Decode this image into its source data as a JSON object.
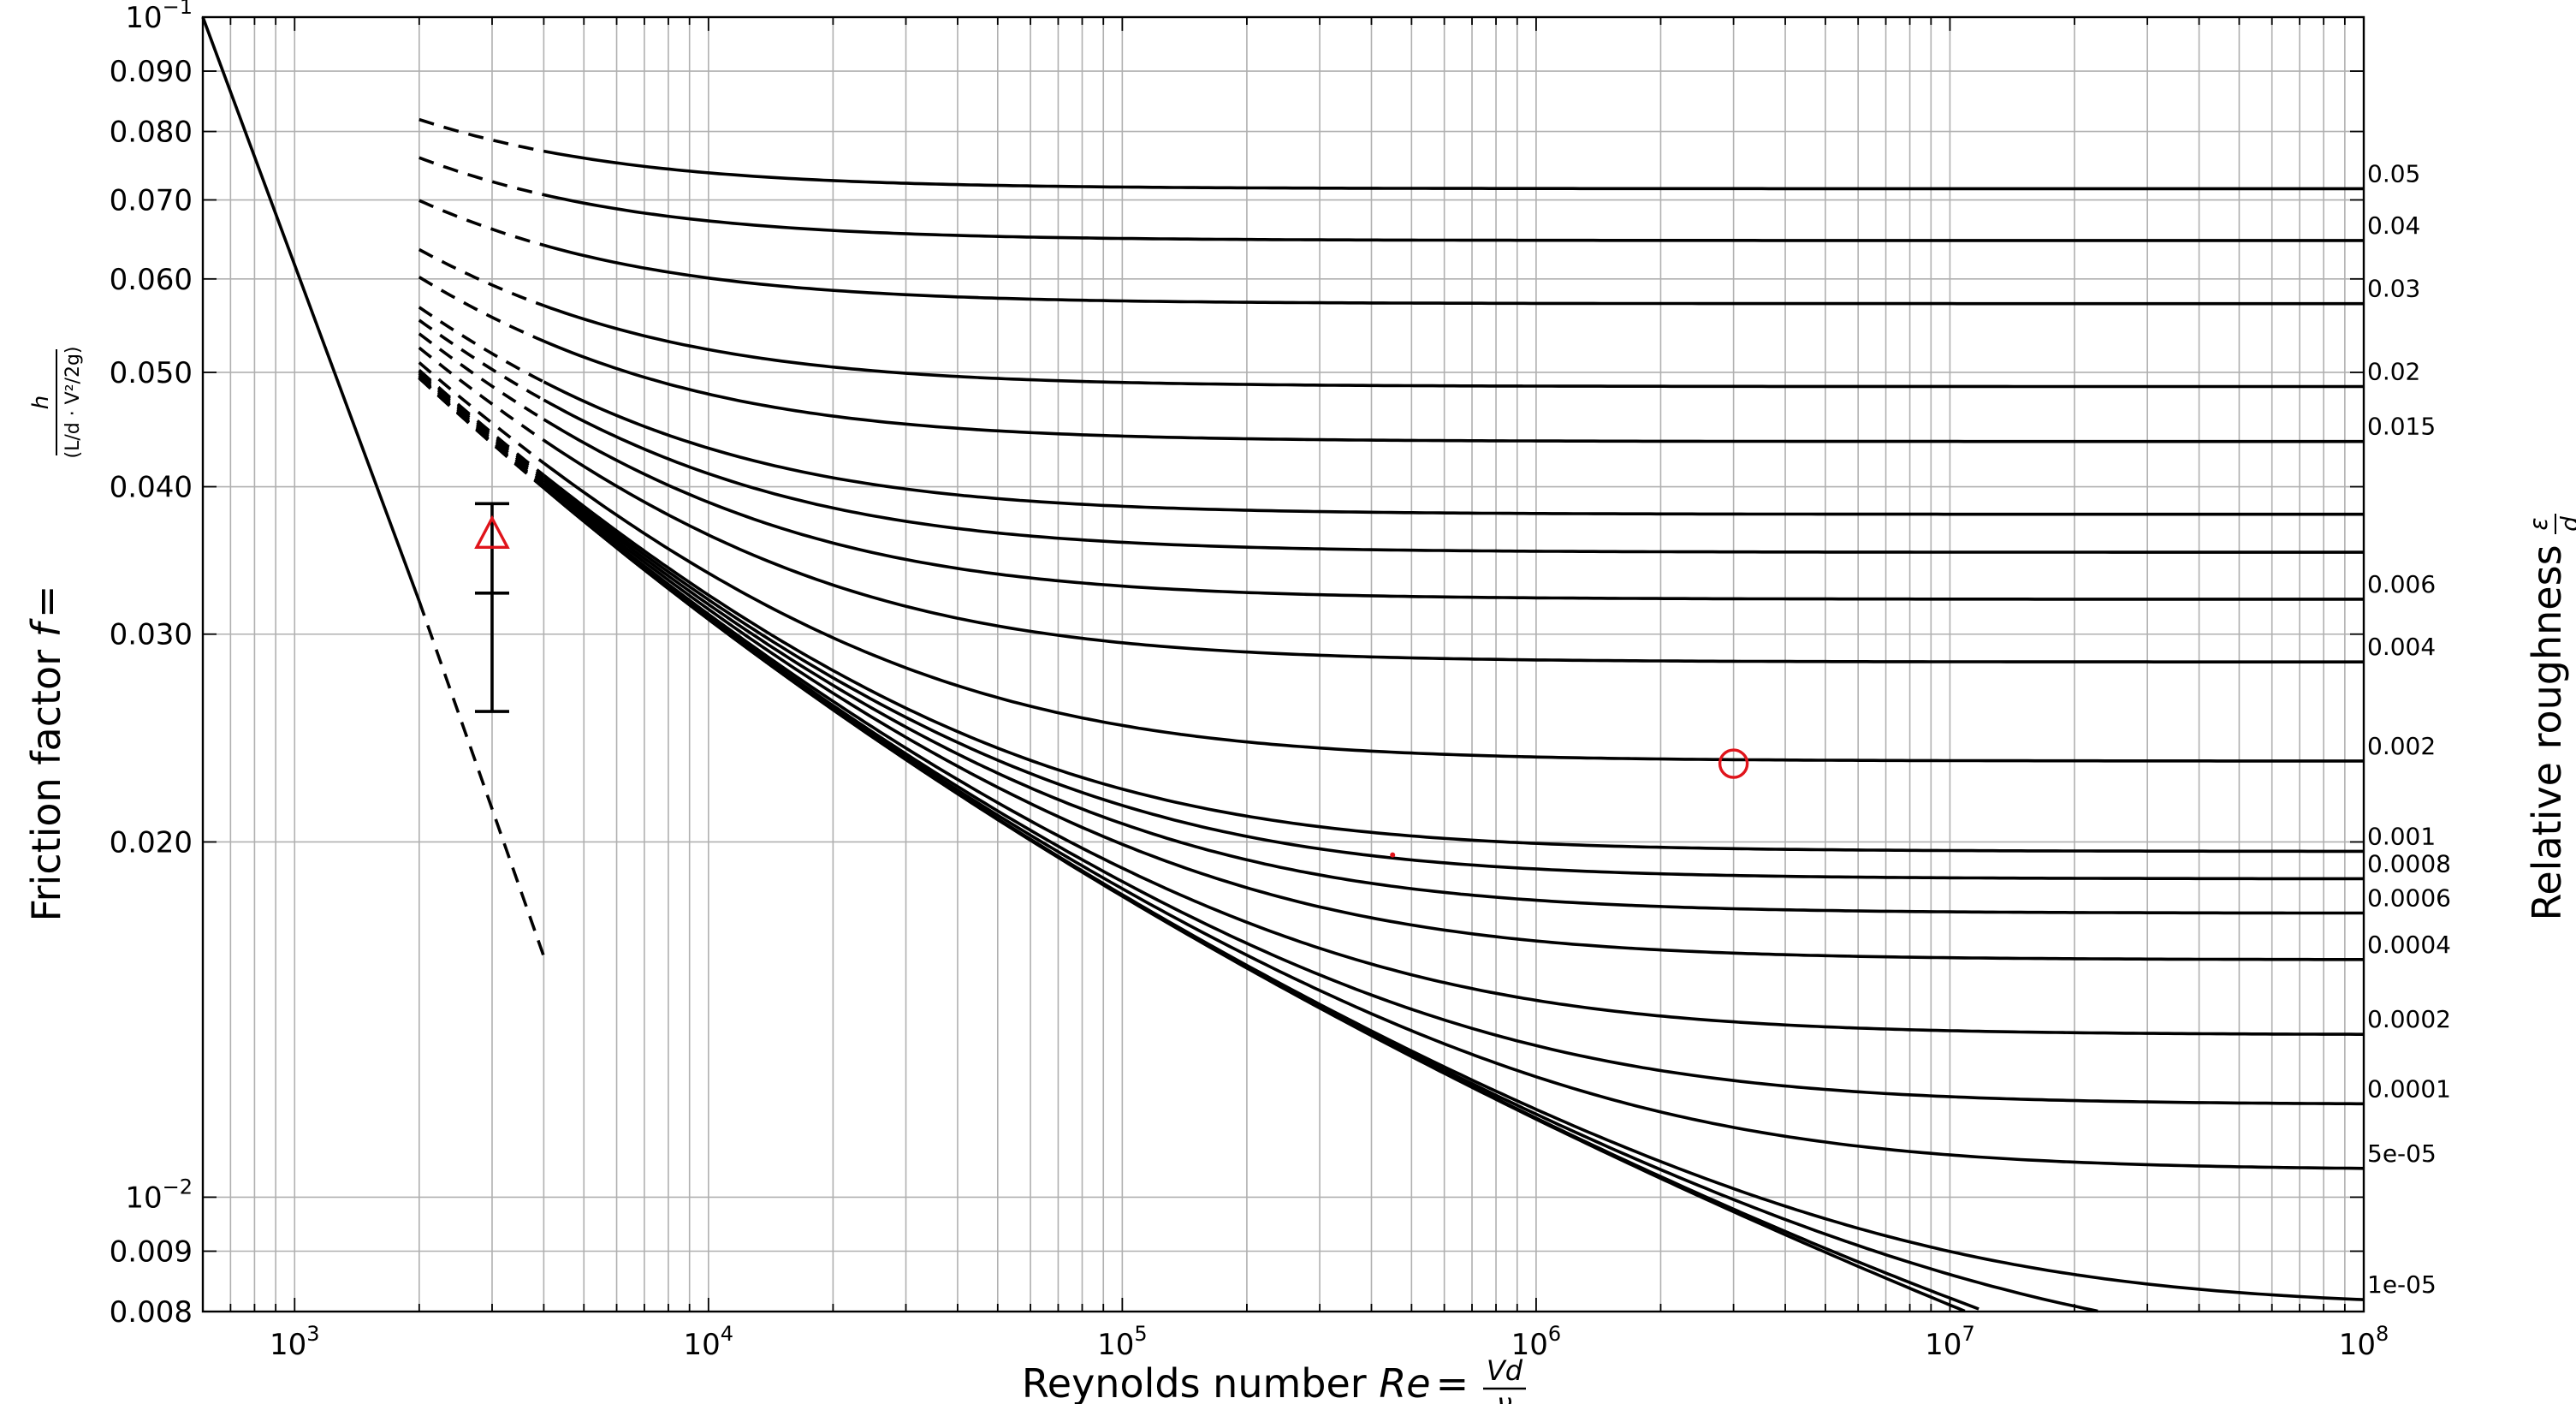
{
  "chart_data": {
    "type": "line",
    "title": "",
    "xlabel_text": "Reynolds number ",
    "xlabel_math": {
      "var": "Re",
      "eq": "=",
      "num": "Vd",
      "den": "ν"
    },
    "ylabel_text": "Friction factor ",
    "ylabel_math": {
      "var": "f",
      "eq": "=",
      "num": "h",
      "den": "(L/d · V²/2g)"
    },
    "right_label_text": "Relative roughness ",
    "right_label_math": {
      "num": "ε",
      "den": "d"
    },
    "x_scale": "log",
    "y_scale": "log",
    "xlim": [
      600,
      100000000
    ],
    "ylim": [
      0.008,
      0.1
    ],
    "grid": true,
    "x_ticks": [
      {
        "value": 1000,
        "base": "10",
        "exp": "3"
      },
      {
        "value": 10000,
        "base": "10",
        "exp": "4"
      },
      {
        "value": 100000,
        "base": "10",
        "exp": "5"
      },
      {
        "value": 1000000,
        "base": "10",
        "exp": "6"
      },
      {
        "value": 10000000,
        "base": "10",
        "exp": "7"
      },
      {
        "value": 100000000,
        "base": "10",
        "exp": "8"
      }
    ],
    "y_ticks": [
      {
        "value": 0.1,
        "label": "",
        "base": "10",
        "exp": "−1"
      },
      {
        "value": 0.09,
        "label": "0.090"
      },
      {
        "value": 0.08,
        "label": "0.080"
      },
      {
        "value": 0.07,
        "label": "0.070"
      },
      {
        "value": 0.06,
        "label": "0.060"
      },
      {
        "value": 0.05,
        "label": "0.050"
      },
      {
        "value": 0.04,
        "label": "0.040"
      },
      {
        "value": 0.03,
        "label": "0.030"
      },
      {
        "value": 0.02,
        "label": "0.020"
      },
      {
        "value": 0.01,
        "label": "",
        "base": "10",
        "exp": "−2"
      },
      {
        "value": 0.009,
        "label": "0.009"
      },
      {
        "value": 0.008,
        "label": "0.008"
      }
    ],
    "laminar": {
      "x_solid": [
        600,
        2000
      ],
      "x_dashed": [
        2000,
        4000
      ]
    },
    "turbulent": {
      "re_dashed_start": 2000,
      "re_solid_start": 4000,
      "re_end": 100000000
    },
    "roughness_curves": [
      {
        "value": 0.05,
        "label": "0.05"
      },
      {
        "value": 0.04,
        "label": "0.04"
      },
      {
        "value": 0.03,
        "label": "0.03"
      },
      {
        "value": 0.02,
        "label": "0.02"
      },
      {
        "value": 0.015,
        "label": "0.015"
      },
      {
        "value": 0.01,
        "label": ""
      },
      {
        "value": 0.008,
        "label": ""
      },
      {
        "value": 0.006,
        "label": "0.006"
      },
      {
        "value": 0.004,
        "label": "0.004"
      },
      {
        "value": 0.002,
        "label": "0.002"
      },
      {
        "value": 0.001,
        "label": "0.001"
      },
      {
        "value": 0.0008,
        "label": "0.0008"
      },
      {
        "value": 0.0006,
        "label": "0.0006"
      },
      {
        "value": 0.0004,
        "label": "0.0004"
      },
      {
        "value": 0.0002,
        "label": "0.0002"
      },
      {
        "value": 0.0001,
        "label": "0.0001"
      },
      {
        "value": 5e-05,
        "label": "5e-05"
      },
      {
        "value": 1e-05,
        "label": "1e-05"
      },
      {
        "value": 5e-06,
        "label": ""
      },
      {
        "value": 1e-06,
        "label": ""
      },
      {
        "value": 0,
        "label": ""
      }
    ],
    "markers": [
      {
        "shape": "triangle",
        "x": 3000,
        "y": 0.0365,
        "color": "#e0141b"
      },
      {
        "shape": "circle",
        "x": 3000000,
        "y": 0.0233,
        "color": "#e0141b"
      },
      {
        "shape": "dot",
        "x": 450000,
        "y": 0.0195,
        "color": "#e0141b"
      }
    ],
    "error_bar": {
      "x": 3000,
      "y_low": 0.0258,
      "y_mid": 0.0325,
      "y_high": 0.0387
    }
  }
}
